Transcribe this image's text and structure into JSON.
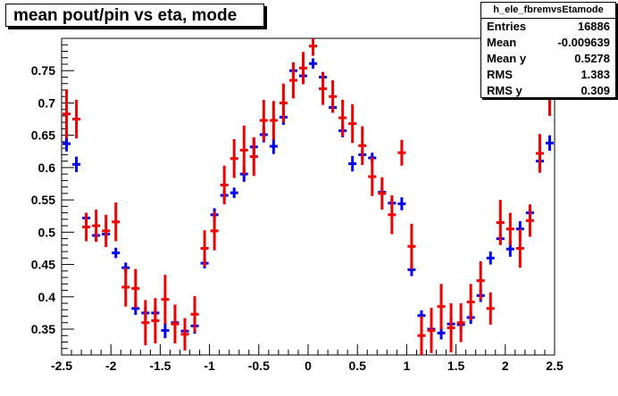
{
  "chart_data": {
    "type": "scatter",
    "title": "mean pout/pin vs eta, mode",
    "xlim": [
      -2.5,
      2.5
    ],
    "ylim": [
      0.31,
      0.8
    ],
    "x_ticks": [
      "-2.5",
      "-2",
      "-1.5",
      "-1",
      "-0.5",
      "0",
      "0.5",
      "1",
      "1.5",
      "2",
      "2.5"
    ],
    "y_ticks": [
      "0.35",
      "0.4",
      "0.45",
      "0.5",
      "0.55",
      "0.6",
      "0.65",
      "0.7",
      "0.75"
    ],
    "x_tick_values": [
      -2.5,
      -2,
      -1.5,
      -1,
      -0.5,
      0,
      0.5,
      1,
      1.5,
      2,
      2.5
    ],
    "y_tick_values": [
      0.35,
      0.4,
      0.45,
      0.5,
      0.55,
      0.6,
      0.65,
      0.7,
      0.75
    ],
    "x_bin_width": 0.1,
    "series": [
      {
        "color": "#0000ee",
        "points": [
          [
            -2.45,
            0.637,
            0.012
          ],
          [
            -2.35,
            0.605,
            0.012
          ],
          [
            -2.25,
            0.522,
            0.008
          ],
          [
            -2.15,
            0.495,
            0.008
          ],
          [
            -2.05,
            0.497,
            0.008
          ],
          [
            -1.95,
            0.468,
            0.008
          ],
          [
            -1.85,
            0.445,
            0.008
          ],
          [
            -1.75,
            0.382,
            0.01
          ],
          [
            -1.65,
            0.375,
            0.01
          ],
          [
            -1.55,
            0.375,
            0.01
          ],
          [
            -1.45,
            0.348,
            0.012
          ],
          [
            -1.35,
            0.36,
            0.01
          ],
          [
            -1.25,
            0.347,
            0.01
          ],
          [
            -1.15,
            0.355,
            0.012
          ],
          [
            -1.05,
            0.452,
            0.008
          ],
          [
            -0.95,
            0.527,
            0.01
          ],
          [
            -0.85,
            0.557,
            0.008
          ],
          [
            -0.75,
            0.561,
            0.008
          ],
          [
            -0.65,
            0.59,
            0.012
          ],
          [
            -0.55,
            0.632,
            0.012
          ],
          [
            -0.45,
            0.651,
            0.012
          ],
          [
            -0.35,
            0.633,
            0.012
          ],
          [
            -0.25,
            0.678,
            0.012
          ],
          [
            -0.15,
            0.75,
            0.01
          ],
          [
            -0.05,
            0.742,
            0.008
          ],
          [
            0.05,
            0.761,
            0.008
          ],
          [
            0.15,
            0.74,
            0.008
          ],
          [
            0.25,
            0.693,
            0.008
          ],
          [
            0.35,
            0.657,
            0.01
          ],
          [
            0.45,
            0.606,
            0.012
          ],
          [
            0.55,
            0.62,
            0.008
          ],
          [
            0.65,
            0.615,
            0.008
          ],
          [
            0.75,
            0.562,
            0.008
          ],
          [
            0.85,
            0.545,
            0.008
          ],
          [
            0.95,
            0.544,
            0.01
          ],
          [
            1.05,
            0.442,
            0.01
          ],
          [
            1.15,
            0.371,
            0.008
          ],
          [
            1.25,
            0.35,
            0.01
          ],
          [
            1.35,
            0.344,
            0.01
          ],
          [
            1.45,
            0.358,
            0.012
          ],
          [
            1.55,
            0.357,
            0.012
          ],
          [
            1.65,
            0.368,
            0.01
          ],
          [
            1.75,
            0.402,
            0.01
          ],
          [
            1.85,
            0.46,
            0.01
          ],
          [
            1.95,
            0.49,
            0.008
          ],
          [
            2.05,
            0.474,
            0.012
          ],
          [
            2.15,
            0.505,
            0.012
          ],
          [
            2.25,
            0.53,
            0.012
          ],
          [
            2.35,
            0.61,
            0.012
          ],
          [
            2.45,
            0.638,
            0.012
          ]
        ]
      },
      {
        "color": "#ee0000",
        "points": [
          [
            -2.45,
            0.683,
            0.038
          ],
          [
            -2.35,
            0.675,
            0.03
          ],
          [
            -2.25,
            0.508,
            0.022
          ],
          [
            -2.15,
            0.51,
            0.025
          ],
          [
            -2.05,
            0.502,
            0.025
          ],
          [
            -1.95,
            0.516,
            0.03
          ],
          [
            -1.85,
            0.415,
            0.03
          ],
          [
            -1.75,
            0.413,
            0.03
          ],
          [
            -1.65,
            0.36,
            0.035
          ],
          [
            -1.55,
            0.363,
            0.035
          ],
          [
            -1.45,
            0.396,
            0.038
          ],
          [
            -1.35,
            0.358,
            0.03
          ],
          [
            -1.25,
            0.342,
            0.025
          ],
          [
            -1.15,
            0.373,
            0.028
          ],
          [
            -1.05,
            0.475,
            0.028
          ],
          [
            -0.95,
            0.502,
            0.03
          ],
          [
            -0.85,
            0.573,
            0.03
          ],
          [
            -0.75,
            0.614,
            0.03
          ],
          [
            -0.65,
            0.627,
            0.038
          ],
          [
            -0.55,
            0.617,
            0.03
          ],
          [
            -0.45,
            0.673,
            0.032
          ],
          [
            -0.35,
            0.673,
            0.03
          ],
          [
            -0.25,
            0.7,
            0.03
          ],
          [
            -0.15,
            0.735,
            0.028
          ],
          [
            -0.05,
            0.754,
            0.025
          ],
          [
            0.05,
            0.788,
            0.015
          ],
          [
            0.15,
            0.722,
            0.025
          ],
          [
            0.25,
            0.71,
            0.025
          ],
          [
            0.35,
            0.677,
            0.028
          ],
          [
            0.45,
            0.668,
            0.03
          ],
          [
            0.55,
            0.634,
            0.03
          ],
          [
            0.65,
            0.586,
            0.03
          ],
          [
            0.75,
            0.56,
            0.025
          ],
          [
            0.85,
            0.527,
            0.03
          ],
          [
            0.95,
            0.623,
            0.02
          ],
          [
            1.05,
            0.478,
            0.035
          ],
          [
            1.15,
            0.34,
            0.03
          ],
          [
            1.25,
            0.348,
            0.035
          ],
          [
            1.35,
            0.385,
            0.035
          ],
          [
            1.45,
            0.352,
            0.038
          ],
          [
            1.55,
            0.36,
            0.03
          ],
          [
            1.65,
            0.392,
            0.028
          ],
          [
            1.75,
            0.425,
            0.03
          ],
          [
            1.85,
            0.382,
            0.025
          ],
          [
            1.95,
            0.515,
            0.035
          ],
          [
            2.05,
            0.505,
            0.025
          ],
          [
            2.15,
            0.475,
            0.03
          ],
          [
            2.25,
            0.518,
            0.025
          ],
          [
            2.35,
            0.622,
            0.03
          ],
          [
            2.45,
            0.71,
            0.03
          ]
        ]
      }
    ]
  },
  "stats_box": {
    "name": "h_ele_fbremvsEtamode",
    "entries_label": "Entries",
    "entries_value": "16886",
    "mean_label": "Mean",
    "mean_value": "-0.009639",
    "mean_y_label": "Mean y",
    "mean_y_value": "0.5278",
    "rms_label": "RMS",
    "rms_value": "1.383",
    "rms_y_label": "RMS y",
    "rms_y_value": "0.309"
  }
}
